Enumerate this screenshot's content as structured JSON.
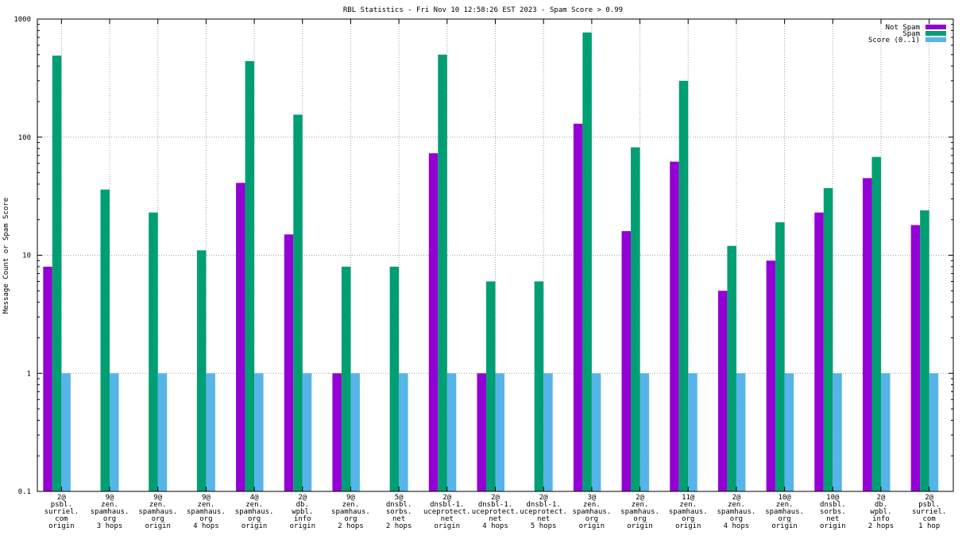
{
  "chart_data": {
    "type": "bar",
    "title": "RBL Statistics - Fri Nov 10 12:58:26 EST 2023 - Spam Score > 0.99",
    "xlabel": "",
    "ylabel": "Message Count or Spam Score",
    "yscale": "log",
    "ylim": [
      0.1,
      1000
    ],
    "yticks": [
      0.1,
      1,
      10,
      100,
      1000
    ],
    "ytick_labels": [
      "0.1",
      "1",
      "10",
      "100",
      "1000"
    ],
    "grid": true,
    "legend_position": "top-right",
    "categories": [
      [
        "2@",
        "psbl.",
        "surriel.",
        "com",
        "origin"
      ],
      [
        "9@",
        "zen.",
        "spamhaus.",
        "org",
        "3 hops"
      ],
      [
        "9@",
        "zen.",
        "spamhaus.",
        "org",
        "origin"
      ],
      [
        "9@",
        "zen.",
        "spamhaus.",
        "org",
        "4 hops"
      ],
      [
        "4@",
        "zen.",
        "spamhaus.",
        "org",
        "origin"
      ],
      [
        "2@",
        "db.",
        "wpbl.",
        "info",
        "origin"
      ],
      [
        "9@",
        "zen.",
        "spamhaus.",
        "org",
        "2 hops"
      ],
      [
        "5@",
        "dnsbl.",
        "sorbs.",
        "net",
        "2 hops"
      ],
      [
        "2@",
        "dnsbl-1.",
        "uceprotect.",
        "net",
        "origin"
      ],
      [
        "2@",
        "dnsbl-1.",
        "uceprotect.",
        "net",
        "4 hops"
      ],
      [
        "2@",
        "dnsbl-1.",
        "uceprotect.",
        "net",
        "5 hops"
      ],
      [
        "3@",
        "zen.",
        "spamhaus.",
        "org",
        "origin"
      ],
      [
        "2@",
        "zen.",
        "spamhaus.",
        "org",
        "origin"
      ],
      [
        "11@",
        "zen.",
        "spamhaus.",
        "org",
        "origin"
      ],
      [
        "2@",
        "zen.",
        "spamhaus.",
        "org",
        "4 hops"
      ],
      [
        "10@",
        "zen.",
        "spamhaus.",
        "org",
        "origin"
      ],
      [
        "10@",
        "dnsbl.",
        "sorbs.",
        "net",
        "origin"
      ],
      [
        "2@",
        "db.",
        "wpbl.",
        "info",
        "2 hops"
      ],
      [
        "2@",
        "psbl.",
        "surriel.",
        "com",
        "1 hop"
      ]
    ],
    "series": [
      {
        "name": "Not Spam",
        "color": "#9400d3",
        "values": [
          8,
          null,
          null,
          null,
          41,
          15,
          1,
          null,
          73,
          1,
          null,
          130,
          16,
          62,
          5,
          9,
          23,
          45,
          18
        ]
      },
      {
        "name": "Spam",
        "color": "#009e73",
        "values": [
          490,
          36,
          23,
          11,
          440,
          155,
          8,
          8,
          500,
          6,
          6,
          770,
          82,
          300,
          12,
          19,
          37,
          68,
          24
        ]
      },
      {
        "name": "Score (0..1)",
        "color": "#56b4e9",
        "values": [
          1,
          1,
          1,
          1,
          1,
          1,
          1,
          1,
          1,
          1,
          1,
          1,
          1,
          1,
          1,
          1,
          1,
          1,
          1
        ]
      }
    ]
  }
}
